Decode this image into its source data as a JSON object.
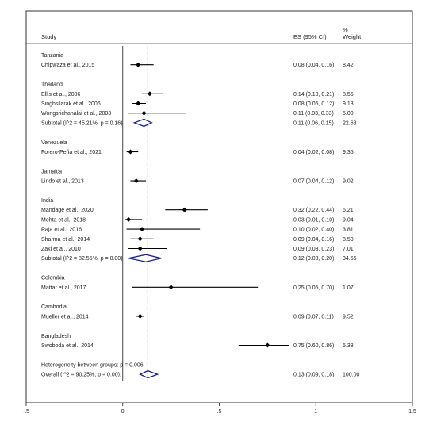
{
  "header": {
    "study": "Study",
    "es": "ES (95% CI)",
    "pct": "%",
    "weight": "Weight"
  },
  "chart_data": {
    "type": "forest",
    "x_axis": {
      "range": [
        -0.5,
        1.5
      ],
      "ticks": [
        -0.5,
        0,
        0.5,
        1,
        1.5
      ],
      "tick_labels": [
        "-.5",
        "0",
        ".5",
        "1",
        "1.5"
      ]
    },
    "overall_line": 0.13,
    "rows": [
      {
        "kind": "group",
        "label": "Tanzania"
      },
      {
        "kind": "study",
        "label": "Chipwaza et al., 2015",
        "es": 0.08,
        "lo": 0.04,
        "hi": 0.16,
        "es_text": "0.08 (0.04, 0.16)",
        "weight": "8.42"
      },
      {
        "kind": "blank"
      },
      {
        "kind": "group",
        "label": "Thailand"
      },
      {
        "kind": "study",
        "label": "Ellis et al., 2006",
        "es": 0.14,
        "lo": 0.1,
        "hi": 0.21,
        "es_text": "0.14 (0.10, 0.21)",
        "weight": "8.55"
      },
      {
        "kind": "study",
        "label": "Singhsilarak et al., 2006",
        "es": 0.08,
        "lo": 0.05,
        "hi": 0.12,
        "es_text": "0.08 (0.05, 0.12)",
        "weight": "9.13"
      },
      {
        "kind": "study",
        "label": "Wongsrichanalai et al., 2003",
        "es": 0.11,
        "lo": 0.03,
        "hi": 0.33,
        "es_text": "0.11 (0.03, 0.33)",
        "weight": "5.00"
      },
      {
        "kind": "subtotal",
        "label": "Subtotal  (I^2 = 45.21%, p = 0.16)",
        "es": 0.11,
        "lo": 0.06,
        "hi": 0.15,
        "es_text": "0.11 (0.06, 0.15)",
        "weight": "22.68"
      },
      {
        "kind": "blank"
      },
      {
        "kind": "group",
        "label": "Venezuela"
      },
      {
        "kind": "study",
        "label": "Forero-Peña et al., 2021",
        "es": 0.04,
        "lo": 0.02,
        "hi": 0.08,
        "es_text": "0.04 (0.02, 0.08)",
        "weight": "9.35"
      },
      {
        "kind": "blank"
      },
      {
        "kind": "group",
        "label": "Jamaica"
      },
      {
        "kind": "study",
        "label": "Lindo et al., 2013",
        "es": 0.07,
        "lo": 0.04,
        "hi": 0.12,
        "es_text": "0.07 (0.04, 0.12)",
        "weight": "9.02"
      },
      {
        "kind": "blank"
      },
      {
        "kind": "group",
        "label": "India"
      },
      {
        "kind": "study",
        "label": "Mandage et al., 2020",
        "es": 0.32,
        "lo": 0.22,
        "hi": 0.44,
        "es_text": "0.32 (0.22, 0.44)",
        "weight": "6.21"
      },
      {
        "kind": "study",
        "label": "Mehta et al., 2018",
        "es": 0.03,
        "lo": 0.01,
        "hi": 0.1,
        "es_text": "0.03 (0.01, 0.10)",
        "weight": "9.04"
      },
      {
        "kind": "study",
        "label": "Raja et al., 2016",
        "es": 0.1,
        "lo": 0.02,
        "hi": 0.4,
        "es_text": "0.10 (0.02, 0.40)",
        "weight": "3.81"
      },
      {
        "kind": "study",
        "label": "Sharma et al., 2014",
        "es": 0.09,
        "lo": 0.04,
        "hi": 0.16,
        "es_text": "0.09 (0.04, 0.16)",
        "weight": "8.50"
      },
      {
        "kind": "study",
        "label": "Zaki et al., 2010",
        "es": 0.09,
        "lo": 0.03,
        "hi": 0.23,
        "es_text": "0.09 (0.03, 0.23)",
        "weight": "7.01"
      },
      {
        "kind": "subtotal",
        "label": "Subtotal  (I^2 = 82.55%, p = 0.00)",
        "es": 0.12,
        "lo": 0.03,
        "hi": 0.2,
        "es_text": "0.12 (0.03, 0.20)",
        "weight": "34.56"
      },
      {
        "kind": "blank"
      },
      {
        "kind": "group",
        "label": "Colombia"
      },
      {
        "kind": "study",
        "label": "Mattar et al., 2017",
        "es": 0.25,
        "lo": 0.05,
        "hi": 0.7,
        "es_text": "0.25 (0.05, 0.70)",
        "weight": "1.07"
      },
      {
        "kind": "blank"
      },
      {
        "kind": "group",
        "label": "Cambodia"
      },
      {
        "kind": "study",
        "label": "Mueller et al., 2014",
        "es": 0.09,
        "lo": 0.07,
        "hi": 0.11,
        "es_text": "0.09 (0.07, 0.11)",
        "weight": "9.52"
      },
      {
        "kind": "blank"
      },
      {
        "kind": "group",
        "label": "Bangladesh"
      },
      {
        "kind": "study",
        "label": "Swoboda et al., 2014",
        "es": 0.75,
        "lo": 0.6,
        "hi": 0.86,
        "es_text": "0.75 (0.60, 0.86)",
        "weight": "5.38"
      },
      {
        "kind": "blank"
      },
      {
        "kind": "note",
        "label": "Heterogeneity between groups: p = 0.006"
      },
      {
        "kind": "subtotal",
        "label": "Overall  (I^2 = 90.25%, p = 0.00);",
        "es": 0.13,
        "lo": 0.09,
        "hi": 0.18,
        "es_text": "0.13 (0.09, 0.18)",
        "weight": "100.00"
      }
    ]
  }
}
